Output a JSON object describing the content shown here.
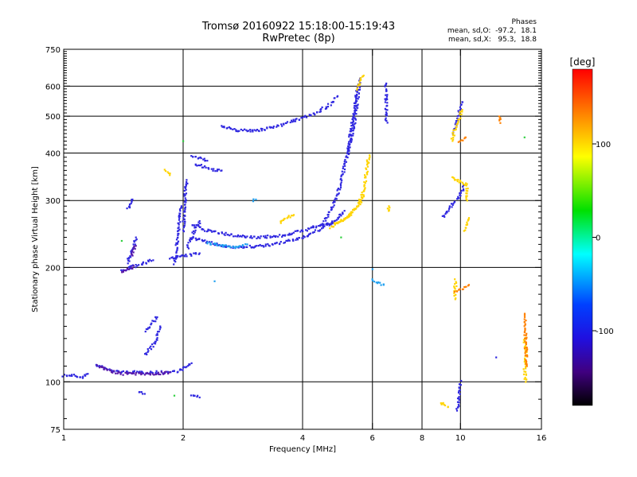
{
  "chart_data": {
    "type": "scatter",
    "title": "Tromsø 20160922 15:18:00-15:19:43",
    "subtitle": "RwPretec (8p)",
    "xlabel": "Frequency [MHz]",
    "ylabel": "Stationary phase Virtual Height [km]",
    "x_scale": "log",
    "y_scale": "log",
    "xlim": [
      1,
      16
    ],
    "ylim": [
      75,
      750
    ],
    "x_ticks": [
      1,
      2,
      4,
      6,
      8,
      10,
      16
    ],
    "y_ticks": [
      75,
      100,
      200,
      300,
      400,
      500,
      600,
      750
    ],
    "x_gridlines": [
      2,
      4,
      6,
      8,
      10
    ],
    "y_gridlines": [
      100,
      200,
      300,
      400,
      500,
      600
    ],
    "info": {
      "header": "Phases",
      "line_o": "mean, sd,O:  -97.2,  18.1",
      "line_x": "mean, sd,X:   95.3,  18.8"
    },
    "colorbar": {
      "label": "[deg]",
      "range": [
        -180,
        180
      ],
      "ticks": [
        100,
        0,
        -100
      ],
      "colormap": "rainbow"
    },
    "series": [
      {
        "mode": "O",
        "phase_deg": -97,
        "color": "#3028e0",
        "segments": [
          [
            [
              1.0,
              104
            ],
            [
              1.05,
              104
            ],
            [
              1.1,
              103
            ],
            [
              1.12,
              103
            ],
            [
              1.15,
              105
            ]
          ],
          [
            [
              1.2,
              111
            ],
            [
              1.25,
              109
            ],
            [
              1.32,
              107
            ],
            [
              1.42,
              106
            ],
            [
              1.55,
              106
            ],
            [
              1.7,
              106
            ],
            [
              1.82,
              106
            ],
            [
              1.95,
              107
            ],
            [
              2.05,
              110
            ],
            [
              2.1,
              112
            ]
          ],
          [
            [
              1.4,
              196
            ],
            [
              1.43,
              198
            ],
            [
              1.47,
              200
            ],
            [
              1.55,
              203
            ],
            [
              1.62,
              207
            ],
            [
              1.68,
              209
            ]
          ],
          [
            [
              1.45,
              205
            ],
            [
              1.48,
              220
            ],
            [
              1.5,
              230
            ],
            [
              1.52,
              240
            ]
          ],
          [
            [
              1.45,
              285
            ],
            [
              1.47,
              295
            ],
            [
              1.49,
              302
            ]
          ],
          [
            [
              1.6,
              118
            ],
            [
              1.65,
              122
            ],
            [
              1.7,
              127
            ],
            [
              1.72,
              132
            ],
            [
              1.75,
              140
            ]
          ],
          [
            [
              1.6,
              136
            ],
            [
              1.65,
              141
            ],
            [
              1.7,
              146
            ],
            [
              1.72,
              148
            ]
          ],
          [
            [
              1.55,
              94
            ],
            [
              1.6,
              93
            ]
          ],
          [
            [
              1.85,
              212
            ],
            [
              1.9,
              213
            ],
            [
              2.0,
              214
            ],
            [
              2.1,
              216
            ],
            [
              2.2,
              218
            ]
          ],
          [
            [
              1.9,
              205
            ],
            [
              1.93,
              230
            ],
            [
              1.95,
              260
            ],
            [
              1.98,
              290
            ]
          ],
          [
            [
              2.0,
              250
            ],
            [
              2.01,
              270
            ],
            [
              2.02,
              300
            ],
            [
              2.03,
              320
            ],
            [
              2.04,
              340
            ]
          ],
          [
            [
              2.05,
              225
            ],
            [
              2.1,
              240
            ],
            [
              2.15,
              255
            ],
            [
              2.2,
              265
            ]
          ],
          [
            [
              2.1,
              240
            ],
            [
              2.3,
              233
            ],
            [
              2.5,
              228
            ],
            [
              2.8,
              226
            ],
            [
              3.2,
              228
            ],
            [
              3.6,
              233
            ],
            [
              4.0,
              240
            ],
            [
              4.3,
              248
            ],
            [
              4.6,
              258
            ],
            [
              4.9,
              268
            ],
            [
              5.1,
              282
            ]
          ],
          [
            [
              2.1,
              258
            ],
            [
              2.3,
              250
            ],
            [
              2.6,
              244
            ],
            [
              3.0,
              240
            ],
            [
              3.5,
              242
            ],
            [
              4.0,
              250
            ],
            [
              4.4,
              258
            ],
            [
              4.8,
              262
            ]
          ],
          [
            [
              2.15,
              375
            ],
            [
              2.25,
              368
            ],
            [
              2.35,
              362
            ],
            [
              2.5,
              360
            ]
          ],
          [
            [
              2.1,
              395
            ],
            [
              2.2,
              388
            ],
            [
              2.3,
              382
            ]
          ],
          [
            [
              2.5,
              470
            ],
            [
              2.7,
              460
            ],
            [
              3.0,
              458
            ],
            [
              3.3,
              465
            ],
            [
              3.6,
              478
            ],
            [
              4.0,
              495
            ],
            [
              4.3,
              510
            ],
            [
              4.6,
              530
            ],
            [
              4.8,
              550
            ],
            [
              4.9,
              565
            ]
          ],
          [
            [
              4.5,
              260
            ],
            [
              4.7,
              280
            ],
            [
              4.9,
              310
            ],
            [
              5.0,
              340
            ],
            [
              5.1,
              370
            ],
            [
              5.2,
              400
            ],
            [
              5.25,
              430
            ],
            [
              5.3,
              460
            ],
            [
              5.35,
              490
            ],
            [
              5.4,
              520
            ],
            [
              5.45,
              560
            ],
            [
              5.5,
              600
            ]
          ],
          [
            [
              5.2,
              400
            ],
            [
              5.3,
              440
            ],
            [
              5.4,
              480
            ],
            [
              5.45,
              520
            ],
            [
              5.5,
              560
            ],
            [
              5.55,
              600
            ],
            [
              5.6,
              630
            ]
          ],
          [
            [
              6.5,
              480
            ],
            [
              6.5,
              610
            ]
          ],
          [
            [
              9.6,
              452
            ],
            [
              9.9,
              510
            ],
            [
              10.1,
              545
            ]
          ],
          [
            [
              9.0,
              272
            ],
            [
              10.0,
              310
            ],
            [
              10.2,
              330
            ]
          ],
          [
            [
              12.3,
              116
            ]
          ],
          [
            [
              10.0,
              100
            ],
            [
              9.8,
              84
            ]
          ],
          [
            [
              2.1,
              92
            ],
            [
              2.2,
              91
            ]
          ]
        ]
      },
      {
        "mode": "O-dark",
        "phase_deg": -115,
        "color": "#5a1aa8",
        "segments": [
          [
            [
              1.22,
              110
            ],
            [
              1.3,
              107
            ],
            [
              1.4,
              105
            ],
            [
              1.55,
              105
            ],
            [
              1.7,
              105
            ],
            [
              1.85,
              106
            ]
          ],
          [
            [
              1.4,
              194
            ],
            [
              1.44,
              197
            ],
            [
              1.48,
              200
            ],
            [
              1.5,
              202
            ]
          ],
          [
            [
              1.48,
              215
            ],
            [
              1.5,
              222
            ],
            [
              1.52,
              228
            ]
          ]
        ]
      },
      {
        "mode": "spread",
        "phase_deg": -55,
        "color": "#20a0f0",
        "segments": [
          [
            [
              2.3,
              232
            ],
            [
              2.5,
              228
            ],
            [
              2.7,
              226
            ],
            [
              2.9,
              230
            ]
          ],
          [
            [
              3.0,
              300
            ],
            [
              3.05,
              302
            ]
          ],
          [
            [
              6.0,
              185
            ],
            [
              6.4,
              180
            ]
          ],
          [
            [
              2.4,
              184
            ]
          ],
          [
            [
              6.0,
              198
            ]
          ]
        ]
      },
      {
        "mode": "X",
        "phase_deg": 95,
        "color": "#ffd400",
        "segments": [
          [
            [
              4.7,
              255
            ],
            [
              4.9,
              262
            ],
            [
              5.1,
              268
            ],
            [
              5.3,
              278
            ],
            [
              5.5,
              290
            ],
            [
              5.6,
              305
            ],
            [
              5.7,
              320
            ],
            [
              5.75,
              340
            ],
            [
              5.8,
              360
            ],
            [
              5.85,
              385
            ],
            [
              5.9,
              395
            ]
          ],
          [
            [
              4.8,
              258
            ],
            [
              5.0,
              265
            ],
            [
              5.2,
              272
            ],
            [
              5.4,
              284
            ],
            [
              5.6,
              298
            ],
            [
              5.7,
              310
            ]
          ],
          [
            [
              5.5,
              590
            ],
            [
              5.6,
              620
            ],
            [
              5.7,
              640
            ]
          ],
          [
            [
              3.5,
              262
            ],
            [
              3.6,
              268
            ],
            [
              3.7,
              272
            ],
            [
              3.8,
              275
            ]
          ],
          [
            [
              6.6,
              280
            ],
            [
              6.6,
              290
            ]
          ],
          [
            [
              9.5,
              345
            ],
            [
              10.4,
              330
            ],
            [
              10.4,
              300
            ]
          ],
          [
            [
              9.7,
              185
            ],
            [
              9.7,
              165
            ]
          ],
          [
            [
              10.2,
              250
            ],
            [
              10.5,
              270
            ]
          ],
          [
            [
              14.5,
              130
            ],
            [
              14.6,
              118
            ],
            [
              14.5,
              108
            ],
            [
              14.6,
              100
            ]
          ],
          [
            [
              9.5,
              430
            ],
            [
              9.8,
              480
            ],
            [
              10.1,
              520
            ]
          ],
          [
            [
              8.9,
              88
            ],
            [
              9.3,
              86
            ]
          ],
          [
            [
              1.8,
              360
            ],
            [
              1.85,
              350
            ]
          ]
        ]
      },
      {
        "mode": "X-orange",
        "phase_deg": 125,
        "color": "#ff8000",
        "segments": [
          [
            [
              14.5,
              150
            ],
            [
              14.6,
              125
            ],
            [
              14.7,
              110
            ]
          ],
          [
            [
              9.7,
              172
            ],
            [
              10.5,
              180
            ]
          ],
          [
            [
              12.6,
              500
            ],
            [
              12.6,
              480
            ]
          ],
          [
            [
              9.9,
              430
            ],
            [
              10.3,
              440
            ]
          ]
        ]
      },
      {
        "mode": "green",
        "phase_deg": 20,
        "color": "#30d040",
        "segments": [
          [
            [
              2.0,
              430
            ]
          ],
          [
            [
              1.9,
              92
            ]
          ],
          [
            [
              1.4,
              235
            ]
          ],
          [
            [
              14.5,
              440
            ]
          ],
          [
            [
              5.0,
              240
            ]
          ]
        ]
      }
    ]
  }
}
